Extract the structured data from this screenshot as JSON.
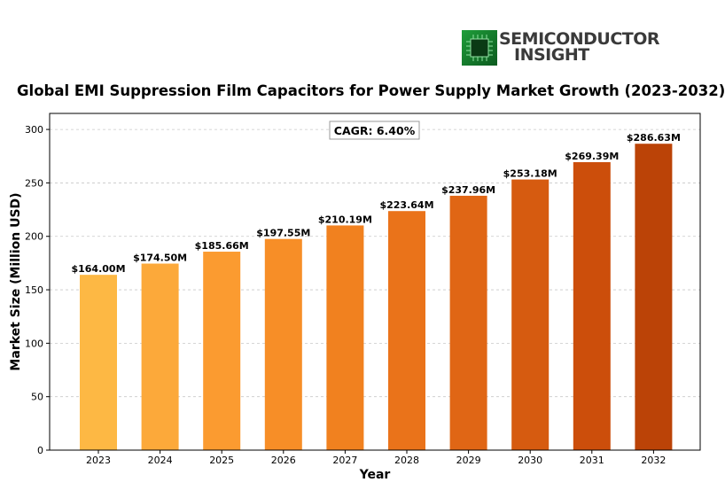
{
  "logo": {
    "line1": "SEMICONDUCTOR",
    "line2": "INSIGHT"
  },
  "chart_data": {
    "type": "bar",
    "title": "Global EMI Suppression Film Capacitors for Power Supply Market Growth (2023-2032)",
    "xlabel": "Year",
    "ylabel": "Market Size (Million USD)",
    "ylim": [
      0,
      315
    ],
    "yticks": [
      0,
      50,
      100,
      150,
      200,
      250,
      300
    ],
    "grid": true,
    "annotation": "CAGR: 6.40%",
    "categories": [
      "2023",
      "2024",
      "2025",
      "2026",
      "2027",
      "2028",
      "2029",
      "2030",
      "2031",
      "2032"
    ],
    "values": [
      164.0,
      174.5,
      185.66,
      197.55,
      210.19,
      223.64,
      237.96,
      253.18,
      269.39,
      286.63
    ],
    "data_labels": [
      "$164.00M",
      "$174.50M",
      "$185.66M",
      "$197.55M",
      "$210.19M",
      "$223.64M",
      "$237.96M",
      "$253.18M",
      "$269.39M",
      "$286.63M"
    ],
    "colors": [
      "#fdb844",
      "#fca93a",
      "#fb9b30",
      "#f78e27",
      "#f1811f",
      "#ea731a",
      "#e06615",
      "#d65b10",
      "#cc4e0b",
      "#bb4307"
    ]
  }
}
